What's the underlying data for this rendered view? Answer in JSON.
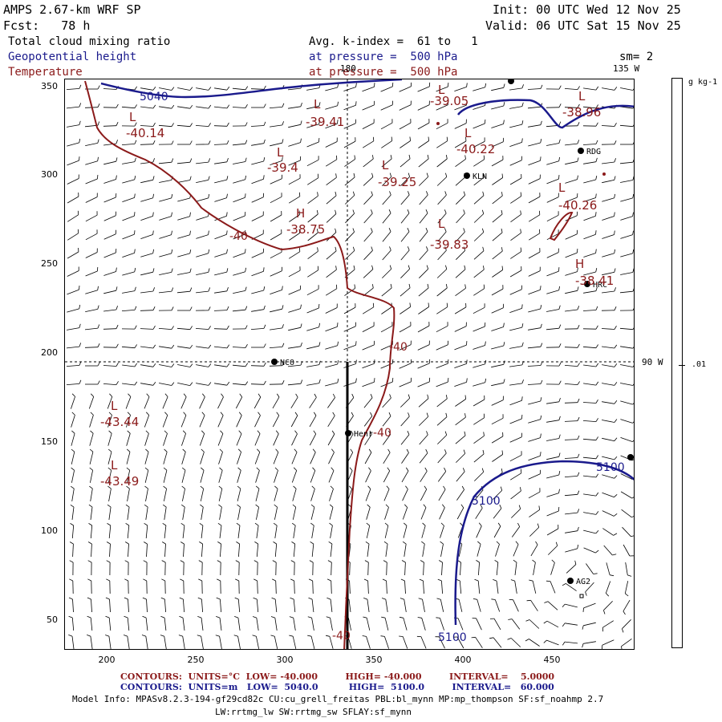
{
  "header": {
    "model_title": "AMPS 2.67-km WRF SP",
    "forecast": "Fcst:   78 h",
    "init": "Init: 00 UTC Wed 12 Nov 25",
    "valid": "Valid: 06 UTC Sat 15 Nov 25",
    "field1": "Total cloud mixing ratio",
    "field2": "Geopotential height",
    "field3": "Temperature",
    "avg_line": "Avg. k-index =  61 to   1",
    "pressure1": "at pressure =  500 hPa",
    "pressure2": "at pressure =  500 hPa",
    "sm": "sm= 2"
  },
  "map": {
    "lon_labels": {
      "top_lon": "180",
      "right_top": "135 W",
      "right_mid": "90 W"
    },
    "stations": [
      {
        "name": "KLN"
      },
      {
        "name": "RDG"
      },
      {
        "name": "HRC"
      },
      {
        "name": "NCO"
      },
      {
        "name": "Henr"
      },
      {
        "name": "AG2"
      }
    ],
    "contour_labels": {
      "height": [
        "5040",
        "5100",
        "5100",
        "5100"
      ],
      "temperature": [
        "-40",
        "-40",
        "-40",
        "-40"
      ]
    },
    "extrema": [
      {
        "type": "L",
        "value": "-40.14"
      },
      {
        "type": "L",
        "value": "-39.41"
      },
      {
        "type": "L",
        "value": "-39.05"
      },
      {
        "type": "L",
        "value": "-38.96"
      },
      {
        "type": "L",
        "value": "-39.4"
      },
      {
        "type": "L",
        "value": "-40.22"
      },
      {
        "type": "L",
        "value": "-39.25"
      },
      {
        "type": "L",
        "value": "-40.26"
      },
      {
        "type": "H",
        "value": "-38.75"
      },
      {
        "type": "L",
        "value": "-39.83"
      },
      {
        "type": "H",
        "value": "-38.41"
      },
      {
        "type": "L",
        "value": "-43.44"
      },
      {
        "type": "L",
        "value": "-43.49"
      }
    ]
  },
  "axes": {
    "y_ticks": [
      "350",
      "300",
      "250",
      "200",
      "150",
      "100",
      "50"
    ],
    "x_ticks": [
      "200",
      "250",
      "300",
      "350",
      "400",
      "450"
    ]
  },
  "colorbar": {
    "units": "g kg-1",
    "value": ".01"
  },
  "footer": {
    "contours_temp": "CONTOURS:  UNITS=°C  LOW= -40.000         HIGH= -40.000         INTERVAL=    5.0000",
    "contours_height": "CONTOURS:  UNITS=m   LOW=  5040.0          HIGH=  5100.0         INTERVAL=   60.000",
    "model_info": "Model Info: MPASv8.2.3-194-gf29cd82c CU:cu_grell_freitas PBL:bl_mynn MP:mp_thompson SF:sf_noahmp 2.7",
    "model_info2": "LW:rrtmg_lw SW:rrtmg_sw SFLAY:sf_mynn"
  },
  "colors": {
    "height": "#1a1a8c",
    "temperature": "#8b1a1a"
  }
}
